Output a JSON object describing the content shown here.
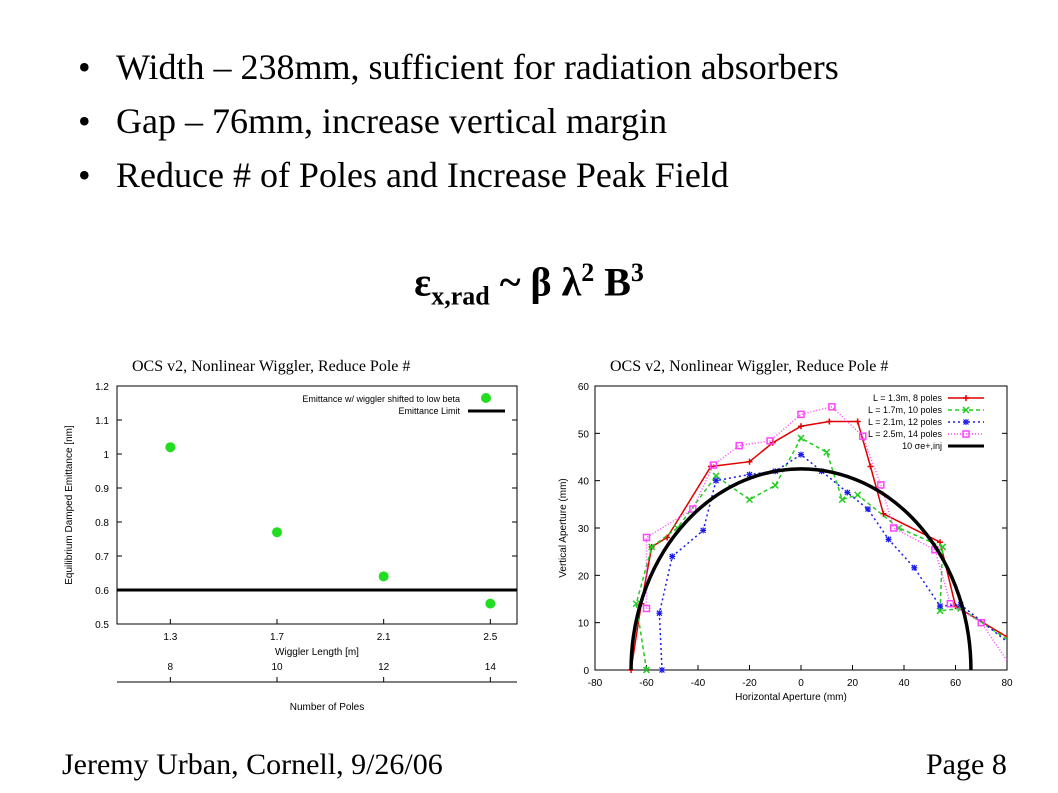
{
  "bullets": [
    "Width – 238mm, sufficient for radiation absorbers",
    "Gap – 76mm, increase vertical margin",
    "Reduce # of Poles and Increase Peak Field"
  ],
  "formula": {
    "lhs": "ε",
    "sub": "x,rad",
    "rel": "~ β λ",
    "pow1": "2",
    "b": "B",
    "pow2": "3"
  },
  "footer": {
    "left": "Jeremy Urban, Cornell, 9/26/06",
    "right": "Page 8"
  },
  "chart_data": [
    {
      "type": "scatter",
      "title": "OCS v2, Nonlinear Wiggler, Reduce Pole #",
      "xlabel": "Wiggler Length [m]",
      "x2label": "Number of Poles",
      "ylabel": "Equilibrium Damped Emittance [nm]",
      "ylim": [
        0.5,
        1.2
      ],
      "yticks": [
        "0.5",
        "0.6",
        "0.7",
        "0.8",
        "0.9",
        "1",
        "1.1",
        "1.2"
      ],
      "xticks": [
        "1.3",
        "1.7",
        "2.1",
        "2.5"
      ],
      "x2ticks": [
        "8",
        "10",
        "12",
        "14"
      ],
      "series": [
        {
          "name": "Emittance w/ wiggler shifted to low beta",
          "color": "#22dd22",
          "points": [
            [
              1.3,
              1.02
            ],
            [
              1.7,
              0.77
            ],
            [
              2.1,
              0.64
            ],
            [
              2.5,
              0.56
            ]
          ]
        },
        {
          "name": "Emittance Limit",
          "color": "#000000",
          "hline": 0.6
        }
      ],
      "legend": "top-right"
    },
    {
      "type": "line",
      "title": "OCS v2, Nonlinear Wiggler, Reduce Pole #",
      "xlabel": "Horizontal Aperture (mm)",
      "ylabel": "Vertical Aperture (mm)",
      "xlim": [
        -80,
        80
      ],
      "ylim": [
        0,
        60
      ],
      "xticks": [
        "-80",
        "-60",
        "-40",
        "-20",
        "0",
        "20",
        "40",
        "60",
        "80"
      ],
      "yticks": [
        "0",
        "10",
        "20",
        "30",
        "40",
        "50",
        "60"
      ],
      "series": [
        {
          "name": "L = 1.3m, 8 poles",
          "color": "#e00000",
          "points": [
            [
              -66,
              0
            ],
            [
              -62,
              14
            ],
            [
              -58,
              26
            ],
            [
              -52,
              28
            ],
            [
              -35,
              43
            ],
            [
              -20,
              44
            ],
            [
              -11,
              48
            ],
            [
              0,
              51.5
            ],
            [
              11,
              52.5
            ],
            [
              22,
              52.5
            ],
            [
              27,
              43
            ],
            [
              32,
              33
            ],
            [
              54,
              27
            ],
            [
              60,
              13.5
            ],
            [
              80,
              7
            ]
          ]
        },
        {
          "name": "L = 1.7m, 10 poles",
          "color": "#22cc22",
          "points": [
            [
              -60,
              0
            ],
            [
              -64,
              14
            ],
            [
              -58,
              26
            ],
            [
              -48,
              30
            ],
            [
              -33,
              41
            ],
            [
              -20,
              36
            ],
            [
              -10,
              39
            ],
            [
              0,
              49
            ],
            [
              10,
              46
            ],
            [
              16,
              36
            ],
            [
              22,
              37
            ],
            [
              38,
              30
            ],
            [
              55,
              26
            ],
            [
              54,
              12.5
            ],
            [
              62,
              13
            ],
            [
              80,
              6.5
            ]
          ]
        },
        {
          "name": "L = 2.1m, 12 poles",
          "color": "#1a1aee",
          "points": [
            [
              -54,
              0
            ],
            [
              -55,
              12
            ],
            [
              -50,
              24
            ],
            [
              -38,
              29.5
            ],
            [
              -33,
              40
            ],
            [
              -20,
              41.3
            ],
            [
              -10,
              42
            ],
            [
              0,
              45.5
            ],
            [
              8,
              42
            ],
            [
              18,
              37.5
            ],
            [
              26,
              34
            ],
            [
              34,
              27.6
            ],
            [
              44,
              21.6
            ],
            [
              54,
              13.5
            ],
            [
              62,
              13.8
            ],
            [
              80,
              6
            ]
          ]
        },
        {
          "name": "L = 2.5m, 14 poles",
          "color": "#ff44ff",
          "points": [
            [
              -60,
              13
            ],
            [
              -60,
              28
            ],
            [
              -42,
              34
            ],
            [
              -34,
              43.3
            ],
            [
              -24,
              47.4
            ],
            [
              -12,
              48.4
            ],
            [
              0,
              54
            ],
            [
              12,
              55.6
            ],
            [
              24,
              49.4
            ],
            [
              31,
              39.1
            ],
            [
              36,
              30
            ],
            [
              52,
              25.4
            ],
            [
              58,
              14
            ],
            [
              70,
              10
            ],
            [
              80,
              2
            ]
          ]
        },
        {
          "name": "10 σe+,inj",
          "color": "#000000",
          "radius_x": 66,
          "radius_y": 42.5
        }
      ],
      "legend": "top-right"
    }
  ]
}
